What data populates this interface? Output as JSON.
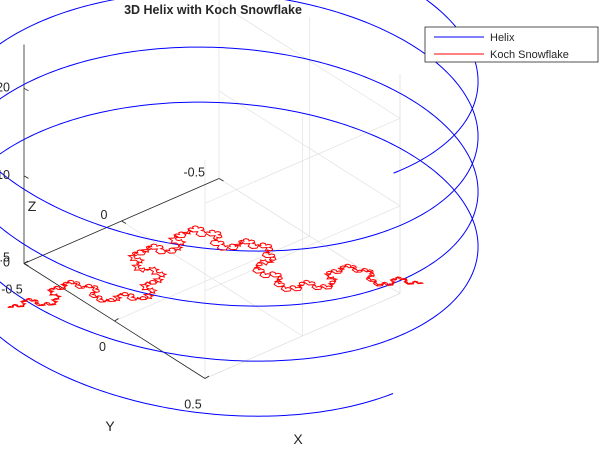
{
  "chart_data": {
    "type": "line",
    "title": "3D Helix with Koch Snowflake",
    "xlabel": "X",
    "ylabel": "Y",
    "zlabel": "Z",
    "xlim": [
      -0.5,
      0.5
    ],
    "ylim": [
      -0.5,
      0.5
    ],
    "zlim": [
      0,
      25
    ],
    "xticks": [
      "-0.5",
      "0",
      "0.5"
    ],
    "yticks": [
      "-0.5",
      "0",
      "0.5"
    ],
    "zticks": [
      "0",
      "10",
      "20"
    ],
    "grid": true,
    "legend_position": "top-right",
    "series": [
      {
        "name": "Helix",
        "color": "#0000ff",
        "x": "cos(t)",
        "y": "sin(t)",
        "z": "t",
        "t_range": [
          0,
          25.13
        ]
      },
      {
        "name": "Koch Snowflake",
        "color": "#ff0000",
        "z": 0,
        "iterations": 4,
        "triangle_vertices": [
          [
            -0.31,
            0.76
          ],
          [
            0.5,
            -0.62
          ],
          [
            -0.31,
            -0.2
          ]
        ]
      }
    ]
  }
}
